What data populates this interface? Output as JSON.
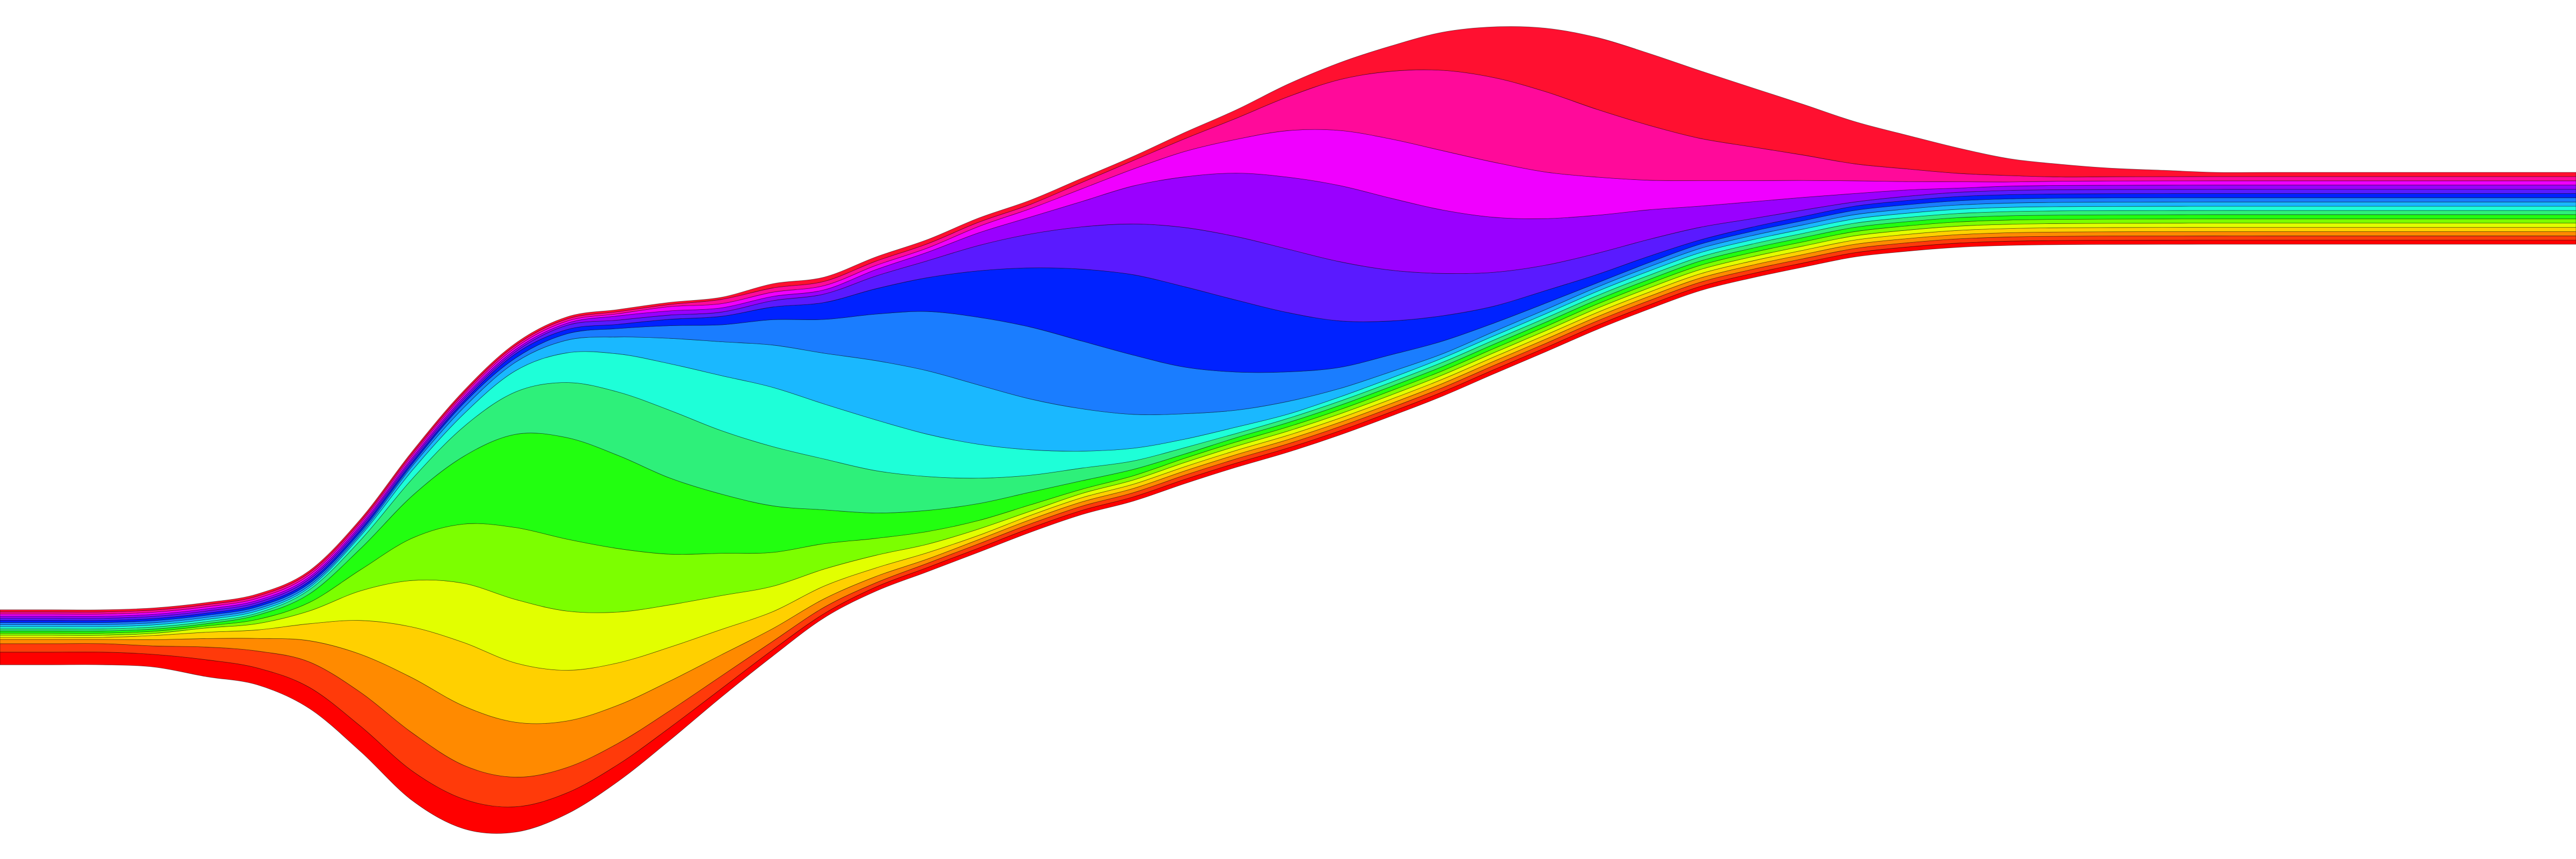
{
  "chart_data": {
    "type": "area",
    "stacking": "streamgraph",
    "offset": "wiggle",
    "interpolation": "smooth",
    "axes": "none",
    "grid": false,
    "legend": "none",
    "title": "",
    "x": [
      0,
      2,
      4,
      6,
      8,
      10,
      12,
      14,
      16,
      18,
      20,
      22,
      24,
      26,
      28,
      30,
      32,
      34,
      36,
      38,
      40,
      42,
      44,
      46,
      48,
      50,
      52,
      54,
      56,
      58,
      60,
      62,
      64,
      66,
      68,
      70,
      72,
      74,
      76,
      78,
      80,
      82,
      84,
      86,
      88,
      90,
      92,
      94,
      96,
      98,
      100
    ],
    "series": [
      {
        "color": "#ff0000",
        "values": [
          3,
          3,
          3,
          3,
          4,
          4,
          5,
          6,
          7,
          7,
          6,
          5,
          4,
          3,
          2,
          1.5,
          1,
          1,
          1,
          1,
          1,
          1,
          1,
          1,
          1,
          1,
          1,
          1,
          1,
          1,
          1,
          1,
          1,
          1,
          1,
          1,
          1,
          1,
          1,
          1,
          1,
          1,
          1,
          1,
          1,
          1,
          1,
          1,
          1,
          1,
          1
        ]
      },
      {
        "color": "#ff3a0a",
        "values": [
          2,
          2,
          2,
          2,
          3,
          4,
          6,
          8,
          9,
          8,
          7,
          6,
          5,
          4,
          3,
          2,
          1.5,
          1,
          1,
          1,
          1,
          1,
          1,
          1,
          1,
          1,
          1,
          1,
          1,
          1,
          1,
          1,
          1,
          1,
          1,
          1,
          1,
          1,
          1,
          1,
          1,
          1,
          1,
          1,
          1,
          1,
          1,
          1,
          1,
          1,
          1
        ]
      },
      {
        "color": "#ff8a00",
        "values": [
          1,
          1,
          1,
          1.5,
          2,
          3,
          5,
          9,
          13,
          14,
          13,
          11,
          9,
          7,
          5,
          3,
          2,
          1.5,
          1,
          1,
          1,
          1,
          1,
          1,
          1,
          1,
          1,
          1,
          1,
          1,
          1,
          1,
          1,
          1,
          1,
          1,
          1,
          1,
          1,
          1,
          1,
          1,
          1,
          1,
          1,
          1,
          1,
          1,
          1,
          1,
          1
        ]
      },
      {
        "color": "#ffd000",
        "values": [
          0.5,
          0.5,
          0.5,
          1,
          1.5,
          2,
          4,
          8,
          12,
          15,
          14,
          12,
          10,
          8,
          6,
          4,
          3,
          2,
          1.5,
          1,
          1,
          1,
          1,
          1,
          1,
          1,
          1,
          1,
          1,
          1,
          1,
          1,
          1,
          1,
          1,
          1,
          1,
          1,
          1,
          1,
          1,
          1,
          1,
          1,
          1,
          1,
          1,
          1,
          1,
          1,
          1
        ]
      },
      {
        "color": "#e2ff00",
        "values": [
          0.5,
          0.5,
          0.5,
          0.5,
          1,
          1.5,
          3,
          7,
          11,
          14,
          15,
          14,
          12,
          10,
          8,
          6,
          4,
          3,
          2,
          1.5,
          1,
          1,
          1,
          1,
          1,
          1,
          1,
          1,
          1,
          1,
          1,
          1,
          1,
          1,
          1,
          1,
          1,
          1,
          1,
          1,
          1,
          1,
          1,
          1,
          1,
          1,
          1,
          1,
          1,
          1,
          1
        ]
      },
      {
        "color": "#7cff00",
        "values": [
          0.5,
          0.5,
          0.5,
          0.5,
          0.5,
          1,
          2,
          5,
          10,
          14,
          17,
          17,
          15,
          12,
          10,
          8,
          6,
          4,
          3,
          2,
          1.5,
          1,
          1,
          1,
          1,
          1,
          1,
          1,
          1,
          1,
          1,
          1,
          1,
          1,
          1,
          1,
          1,
          1,
          1,
          1,
          1,
          1,
          1,
          1,
          1,
          1,
          1,
          1,
          1,
          1,
          1
        ]
      },
      {
        "color": "#22ff10",
        "values": [
          0.5,
          0.5,
          0.5,
          0.5,
          0.5,
          1,
          2,
          5,
          10,
          16,
          22,
          24,
          22,
          18,
          14,
          11,
          8,
          6,
          5,
          4,
          3,
          2,
          1.5,
          1,
          1,
          1,
          1,
          1,
          1,
          1,
          1,
          1,
          1,
          1,
          1,
          1,
          1,
          1,
          1,
          1,
          1,
          1,
          1,
          1,
          1,
          1,
          1,
          1,
          1,
          1,
          1
        ]
      },
      {
        "color": "#2ef07a",
        "values": [
          0.5,
          0.5,
          0.5,
          0.5,
          0.5,
          0.5,
          1,
          2,
          4,
          7,
          10,
          13,
          15,
          16,
          15,
          14,
          12,
          10,
          8,
          6,
          4,
          3,
          2,
          1.5,
          1,
          1,
          1,
          1,
          1,
          1,
          1,
          1,
          1,
          1,
          1,
          1,
          1,
          1,
          1,
          1,
          1,
          1,
          1,
          1,
          1,
          1,
          1,
          1,
          1,
          1,
          1
        ]
      },
      {
        "color": "#1effd8",
        "values": [
          0.5,
          0.5,
          0.5,
          0.5,
          0.5,
          0.5,
          0.5,
          1,
          2,
          3,
          5,
          7,
          9,
          11,
          13,
          14,
          13,
          12,
          10,
          8,
          6,
          4,
          3,
          2,
          1.5,
          1,
          1,
          1,
          1,
          1,
          1,
          1,
          1,
          1,
          1,
          1,
          1,
          1,
          1,
          1,
          1,
          1,
          1,
          1,
          1,
          1,
          1,
          1,
          1,
          1,
          1
        ]
      },
      {
        "color": "#1ab8ff",
        "values": [
          0.5,
          0.5,
          0.5,
          0.5,
          0.5,
          0.5,
          0.5,
          0.5,
          1,
          1.5,
          2,
          3,
          4,
          6,
          8,
          10,
          12,
          14,
          15,
          14,
          12,
          10,
          8,
          6,
          4,
          3,
          2,
          1.5,
          1,
          1,
          1,
          1,
          1,
          1,
          1,
          1,
          1,
          1,
          1,
          1,
          1,
          1,
          1,
          1,
          1,
          1,
          1,
          1,
          1,
          1,
          1
        ]
      },
      {
        "color": "#1a7dff",
        "values": [
          0.5,
          0.5,
          0.5,
          0.5,
          0.5,
          0.5,
          0.5,
          0.5,
          0.5,
          1,
          1,
          1.5,
          2,
          3,
          4,
          6,
          8,
          11,
          14,
          16,
          17,
          16,
          14,
          11,
          9,
          7,
          5,
          4,
          3,
          2,
          1.5,
          1,
          1,
          1,
          1,
          1,
          1,
          1,
          1,
          1,
          1,
          1,
          1,
          1,
          1,
          1,
          1,
          1,
          1,
          1,
          1
        ]
      },
      {
        "color": "#0022ff",
        "values": [
          0.5,
          0.5,
          0.5,
          0.5,
          0.5,
          0.5,
          0.5,
          0.5,
          0.5,
          0.5,
          1,
          1,
          1,
          1.5,
          2,
          3,
          4,
          6,
          8,
          11,
          14,
          17,
          19,
          19,
          17,
          14,
          11,
          8,
          6,
          4,
          3,
          2,
          1.5,
          1,
          1,
          1,
          1,
          1,
          1,
          1,
          1,
          1,
          1,
          1,
          1,
          1,
          1,
          1,
          1,
          1,
          1
        ]
      },
      {
        "color": "#5a1aff",
        "values": [
          0.5,
          0.5,
          0.5,
          0.5,
          0.5,
          0.5,
          0.5,
          0.5,
          0.5,
          0.5,
          0.5,
          1,
          1,
          1,
          1,
          1.5,
          2,
          3,
          4,
          6,
          8,
          10,
          12,
          14,
          15,
          15,
          14,
          12,
          10,
          8,
          6,
          5,
          4,
          3,
          2,
          1.5,
          1,
          1,
          1,
          1,
          1,
          1,
          1,
          1,
          1,
          1,
          1,
          1,
          1,
          1,
          1
        ]
      },
      {
        "color": "#9a00ff",
        "values": [
          0.5,
          0.5,
          0.5,
          0.5,
          0.5,
          0.5,
          0.5,
          0.5,
          0.5,
          0.5,
          0.5,
          0.5,
          1,
          1,
          1,
          1,
          1,
          1.5,
          2,
          3,
          4,
          6,
          9,
          12,
          15,
          17,
          18,
          17,
          15,
          13,
          11,
          9,
          7,
          5,
          4,
          3,
          2,
          1.5,
          1,
          1,
          1,
          1,
          1,
          1,
          1,
          1,
          1,
          1,
          1,
          1,
          1
        ]
      },
      {
        "color": "#f000ff",
        "values": [
          0.5,
          0.5,
          0.5,
          0.5,
          0.5,
          0.5,
          0.5,
          0.5,
          0.5,
          0.5,
          0.5,
          0.5,
          0.5,
          1,
          1,
          1,
          1,
          1,
          1,
          1.5,
          2,
          3,
          4,
          6,
          8,
          11,
          13,
          14,
          14,
          13,
          11,
          9,
          7,
          6,
          5,
          4,
          3,
          2,
          1.5,
          1,
          1,
          1,
          1,
          1,
          1,
          1,
          1,
          1,
          1,
          1,
          1
        ]
      },
      {
        "color": "#ff0a9a",
        "values": [
          0.5,
          0.5,
          0.5,
          0.5,
          0.5,
          0.5,
          0.5,
          0.5,
          0.5,
          0.5,
          0.5,
          0.5,
          0.5,
          0.5,
          1,
          1,
          1,
          1,
          1,
          1,
          1,
          1.5,
          2,
          3,
          5,
          8,
          12,
          16,
          19,
          20,
          19,
          16,
          13,
          10,
          8,
          6,
          4,
          3,
          2,
          1.5,
          1,
          1,
          1,
          1,
          1,
          1,
          1,
          1,
          1,
          1,
          1
        ]
      },
      {
        "color": "#ff1030",
        "values": [
          0.5,
          0.5,
          0.5,
          0.5,
          0.5,
          0.5,
          0.5,
          0.5,
          0.5,
          0.5,
          0.5,
          0.5,
          0.5,
          0.5,
          0.5,
          1,
          1,
          1,
          1,
          1,
          1,
          1,
          1,
          1.5,
          2,
          3,
          4,
          6,
          9,
          12,
          15,
          17,
          17,
          16,
          14,
          12,
          10,
          8,
          6,
          4,
          3,
          2,
          1.5,
          1,
          1,
          1,
          1,
          1,
          1,
          1,
          1
        ]
      }
    ]
  }
}
